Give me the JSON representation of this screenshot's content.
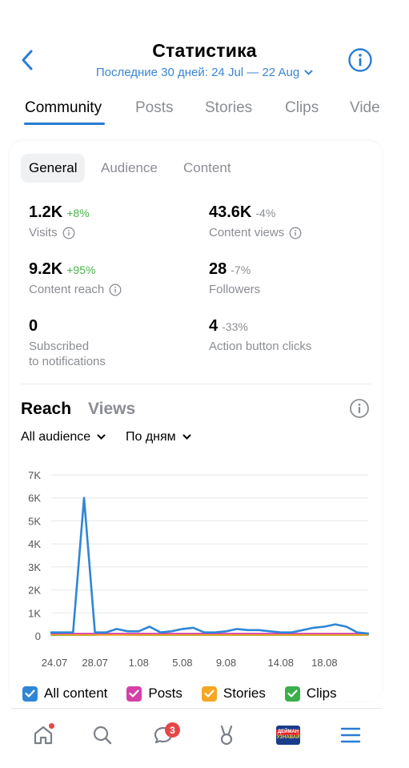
{
  "header": {
    "title": "Статистика",
    "subtitle": "Последние 30 дней: 24 Jul — 22 Aug"
  },
  "tabs": [
    {
      "label": "Community",
      "active": true
    },
    {
      "label": "Posts"
    },
    {
      "label": "Stories"
    },
    {
      "label": "Clips"
    },
    {
      "label": "Vide"
    }
  ],
  "segments": [
    {
      "label": "General",
      "active": true
    },
    {
      "label": "Audience"
    },
    {
      "label": "Content"
    }
  ],
  "stats": [
    {
      "value": "1.2K",
      "change": "+8%",
      "label": "Visits",
      "info": true
    },
    {
      "value": "43.6K",
      "change": "-4%",
      "label": "Content views",
      "info": true
    },
    {
      "value": "9.2K",
      "change": "+95%",
      "label": "Content reach",
      "info": true
    },
    {
      "value": "28",
      "change": "-7%",
      "label": "Followers"
    },
    {
      "value": "0",
      "change": "",
      "label": "Subscribed\nto notifications"
    },
    {
      "value": "4",
      "change": "-33%",
      "label": "Action button clicks"
    }
  ],
  "chart_section": {
    "tab_active": "Reach",
    "tab_inactive": "Views",
    "audience_filter": "All audience",
    "period_filter": "По дням"
  },
  "chart_data": {
    "type": "line",
    "y_ticks": [
      "7K",
      "6K",
      "5K",
      "4K",
      "3K",
      "2K",
      "1K",
      "0"
    ],
    "x_ticks": [
      "24.07",
      "28.07",
      "1.08",
      "5.08",
      "9.08",
      "14.08",
      "18.08"
    ],
    "ylim": [
      0,
      7000
    ],
    "grid": true,
    "x": [
      1,
      2,
      3,
      4,
      5,
      6,
      7,
      8,
      9,
      10,
      11,
      12,
      13,
      14,
      15,
      16,
      17,
      18,
      19,
      20,
      21,
      22,
      23,
      24,
      25,
      26,
      27,
      28,
      29,
      30
    ],
    "series": [
      {
        "name": "All content",
        "color": "#2e86d6",
        "values": [
          150,
          150,
          150,
          6000,
          150,
          150,
          300,
          200,
          200,
          400,
          150,
          200,
          300,
          350,
          150,
          150,
          200,
          300,
          250,
          250,
          200,
          150,
          150,
          250,
          350,
          400,
          500,
          400,
          150,
          100
        ]
      },
      {
        "name": "Posts",
        "color": "#d63fa8",
        "values": [
          100,
          100,
          100,
          100,
          100,
          100,
          100,
          100,
          100,
          100,
          100,
          100,
          100,
          100,
          100,
          100,
          100,
          100,
          100,
          100,
          100,
          100,
          100,
          100,
          100,
          100,
          100,
          100,
          100,
          100
        ]
      },
      {
        "name": "Stories",
        "color": "#f5a623",
        "values": [
          50,
          50,
          40,
          40,
          40,
          40,
          40,
          40,
          40,
          40,
          40,
          40,
          40,
          40,
          40,
          40,
          40,
          40,
          40,
          40,
          40,
          40,
          40,
          40,
          40,
          40,
          40,
          40,
          40,
          40
        ]
      },
      {
        "name": "Clips",
        "color": "#3aaf4a",
        "values": [
          30,
          30,
          30,
          30,
          30,
          80,
          60,
          40,
          30,
          30,
          30,
          30,
          30,
          30,
          30,
          30,
          30,
          30,
          30,
          30,
          30,
          30,
          30,
          30,
          30,
          30,
          30,
          30,
          30,
          30
        ]
      }
    ]
  },
  "legend": [
    {
      "label": "All content",
      "color": "#2e86d6"
    },
    {
      "label": "Posts",
      "color": "#d63fa8"
    },
    {
      "label": "Stories",
      "color": "#f5a623"
    },
    {
      "label": "Clips",
      "color": "#3aaf4a"
    }
  ],
  "nav": {
    "messages_badge": "3",
    "store_logo_top": "ДЕЙМАН",
    "store_logo_bottom": "УЗНАВАЙ"
  }
}
